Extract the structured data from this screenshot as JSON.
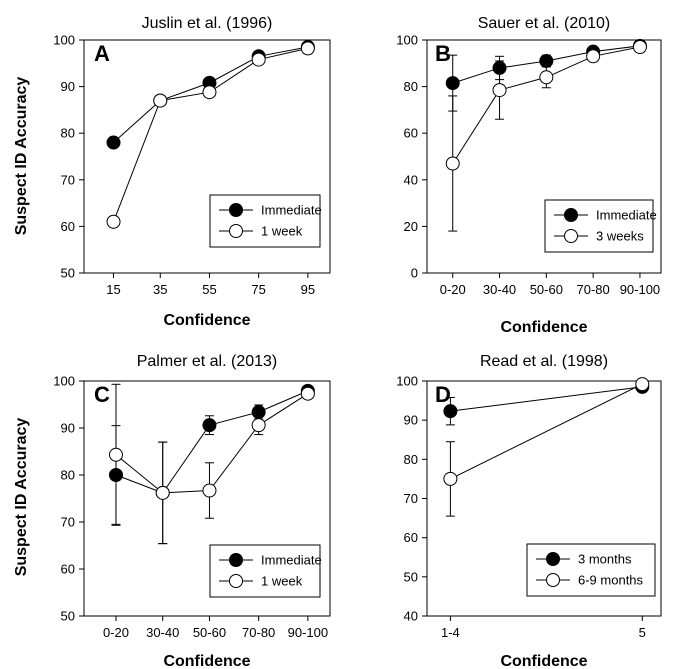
{
  "chart_data": [
    {
      "type": "line",
      "panel": "A",
      "title": "Juslin et al. (1996)",
      "xlabel": "Confidence",
      "ylabel": "Suspect ID Accuracy",
      "categories": [
        "15",
        "35",
        "55",
        "75",
        "95"
      ],
      "ylim": [
        50,
        100
      ],
      "yticks": [
        50,
        60,
        70,
        80,
        90,
        100
      ],
      "legend_position": "lower-right",
      "series": [
        {
          "name": "Immediate",
          "marker": "filled",
          "values": [
            78,
            87,
            90.8,
            96.5,
            98.5
          ],
          "errors": [
            null,
            null,
            null,
            null,
            null
          ]
        },
        {
          "name": "1 week",
          "marker": "open",
          "values": [
            61,
            87,
            88.8,
            95.8,
            98.2
          ],
          "errors": [
            null,
            null,
            null,
            null,
            null
          ]
        }
      ]
    },
    {
      "type": "line",
      "panel": "B",
      "title": "Sauer et al. (2010)",
      "xlabel": "Confidence",
      "ylabel": "",
      "categories": [
        "0-20",
        "30-40",
        "50-60",
        "70-80",
        "90-100"
      ],
      "ylim": [
        0,
        100
      ],
      "yticks": [
        0,
        20,
        40,
        60,
        80,
        100
      ],
      "legend_position": "lower-right",
      "series": [
        {
          "name": "Immediate",
          "marker": "filled",
          "values": [
            81.5,
            88,
            91,
            95,
            97.5
          ],
          "errors": [
            12,
            5,
            2.5,
            1.5,
            1
          ]
        },
        {
          "name": "3 weeks",
          "marker": "open",
          "values": [
            47,
            78.5,
            84,
            93,
            97
          ],
          "errors": [
            29,
            12.5,
            4.5,
            2,
            1
          ]
        }
      ]
    },
    {
      "type": "line",
      "panel": "C",
      "title": "Palmer et al. (2013)",
      "xlabel": "Confidence",
      "ylabel": "Suspect ID Accuracy",
      "categories": [
        "0-20",
        "30-40",
        "50-60",
        "70-80",
        "90-100"
      ],
      "ylim": [
        50,
        100
      ],
      "yticks": [
        50,
        60,
        70,
        80,
        90,
        100
      ],
      "legend_position": "lower-right",
      "series": [
        {
          "name": "Immediate",
          "marker": "filled",
          "values": [
            80,
            76.2,
            90.6,
            93.4,
            97.9
          ],
          "errors": [
            10.5,
            10.8,
            2,
            1.5,
            0.7
          ]
        },
        {
          "name": "1 week",
          "marker": "open",
          "values": [
            84.3,
            76.2,
            76.7,
            90.6,
            97.3
          ],
          "errors": [
            15,
            10.8,
            5.9,
            2,
            1
          ]
        }
      ]
    },
    {
      "type": "line",
      "panel": "D",
      "title": "Read et al. (1998)",
      "xlabel": "Confidence",
      "ylabel": "",
      "categories": [
        "1-4",
        "5"
      ],
      "ylim": [
        40,
        100
      ],
      "yticks": [
        40,
        50,
        60,
        70,
        80,
        90,
        100
      ],
      "legend_position": "lower-right",
      "series": [
        {
          "name": "3 months",
          "marker": "filled",
          "values": [
            92.3,
            98.5
          ],
          "errors": [
            3.5,
            0.8
          ]
        },
        {
          "name": "6-9 months",
          "marker": "open",
          "values": [
            75,
            99.2
          ],
          "errors": [
            9.5,
            1.2
          ]
        }
      ]
    }
  ]
}
